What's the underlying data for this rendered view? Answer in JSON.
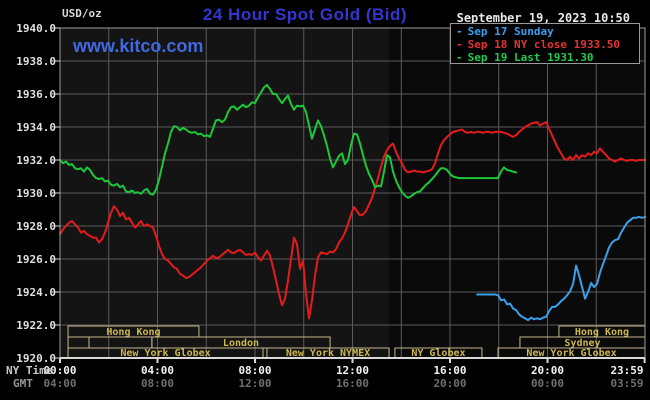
{
  "header": {
    "unit": "USD/oz",
    "title": "24 Hour Spot Gold (Bid)",
    "watermark": "www.kitco.com",
    "datetime": "September 19, 2023 10:50"
  },
  "legend": {
    "items": [
      {
        "label": "Sep 17 Sunday",
        "color": "#3d9ff0"
      },
      {
        "label": "Sep 18 NY close 1933.50",
        "color": "#e53333"
      },
      {
        "label": "Sep 19 Last 1931.30",
        "color": "#21cc4e"
      }
    ]
  },
  "axes": {
    "ny_label": "NY Time",
    "gmt_label": "GMT"
  },
  "chart_data": {
    "type": "line",
    "title": "24 Hour Spot Gold (Bid)",
    "ylabel": "USD/oz",
    "ylim": [
      1920,
      1940
    ],
    "xlim_hours": [
      0,
      24
    ],
    "grid": true,
    "legend_position": "top-right",
    "dark_band_start_hour": 13.5,
    "colors": {
      "plot_bg": "#141414",
      "plot_bg_dark": "#0a0a0a",
      "grid": "#5a5a5a",
      "border": "#9b9b9b",
      "axis": "#d9d9d9",
      "session_border": "#c3b78b",
      "session_text": "#ccb84f"
    },
    "y_ticks": [
      {
        "label": "1940.0",
        "value": 1940
      },
      {
        "label": "1938.0",
        "value": 1938
      },
      {
        "label": "1936.0",
        "value": 1936
      },
      {
        "label": "1934.0",
        "value": 1934
      },
      {
        "label": "1932.0",
        "value": 1932
      },
      {
        "label": "1930.0",
        "value": 1930
      },
      {
        "label": "1928.0",
        "value": 1928
      },
      {
        "label": "1926.0",
        "value": 1926
      },
      {
        "label": "1924.0",
        "value": 1924
      },
      {
        "label": "1922.0",
        "value": 1922
      },
      {
        "label": "1920.0",
        "value": 1920
      }
    ],
    "x_ticks": [
      {
        "ny": "00:00",
        "gmt": "04:00",
        "hour": 0
      },
      {
        "ny": "04:00",
        "gmt": "08:00",
        "hour": 4
      },
      {
        "ny": "08:00",
        "gmt": "12:00",
        "hour": 8
      },
      {
        "ny": "12:00",
        "gmt": "16:00",
        "hour": 12
      },
      {
        "ny": "16:00",
        "gmt": "20:00",
        "hour": 16
      },
      {
        "ny": "20:00",
        "gmt": "00:00",
        "hour": 20
      },
      {
        "ny": "23:59",
        "gmt": "03:59",
        "hour": 23.983
      }
    ],
    "sessions": [
      {
        "row": 1,
        "label": "Hong Kong",
        "start_hour": 0.33,
        "end_hour": 5.7
      },
      {
        "row": 1,
        "label": "Hong Kong",
        "start_hour": 20.47,
        "end_hour": 24
      },
      {
        "row": 2,
        "label": "",
        "start_hour": 0.33,
        "end_hour": 1.19
      },
      {
        "row": 2,
        "label": "",
        "start_hour": 1.19,
        "end_hour": 3.77
      },
      {
        "row": 2,
        "label": "London",
        "start_hour": 3.77,
        "end_hour": 11.08
      },
      {
        "row": 2,
        "label": "Sydney",
        "start_hour": 18.87,
        "end_hour": 24
      },
      {
        "row": 3,
        "label": "New York Globex",
        "start_hour": 0.33,
        "end_hour": 8.33
      },
      {
        "row": 3,
        "label": "New York NYMEX",
        "start_hour": 8.49,
        "end_hour": 13.5
      },
      {
        "row": 3,
        "label": "NY Globex",
        "start_hour": 13.74,
        "end_hour": 17.31
      },
      {
        "row": 3,
        "label": "New York Globex",
        "start_hour": 17.97,
        "end_hour": 24
      }
    ],
    "series": [
      {
        "id": "sep17-sunday",
        "name": "Sep 17 Sunday",
        "color": "#3aa0e8",
        "start_hour": 17.11,
        "step_hour": 0.12308,
        "values": [
          1923.85,
          1923.85,
          1923.85,
          1923.85,
          1923.85,
          1923.85,
          1923.85,
          1923.8,
          1923.5,
          1923.55,
          1923.25,
          1923.3,
          1923.0,
          1922.9,
          1922.65,
          1922.5,
          1922.4,
          1922.3,
          1922.45,
          1922.35,
          1922.4,
          1922.35,
          1922.45,
          1922.5,
          1922.85,
          1923.1,
          1923.1,
          1923.25,
          1923.45,
          1923.6,
          1923.8,
          1924.05,
          1924.5,
          1925.6,
          1925.0,
          1924.3,
          1923.6,
          1924.0,
          1924.55,
          1924.3,
          1924.5,
          1925.2,
          1925.7,
          1926.2,
          1926.7,
          1927.0,
          1927.15,
          1927.2,
          1927.6,
          1927.9,
          1928.2,
          1928.35,
          1928.5,
          1928.5,
          1928.55,
          1928.5,
          1928.55
        ]
      },
      {
        "id": "sep18",
        "name": "Sep 18 NY close 1933.50",
        "color": "#e51b1b",
        "start_hour": 0,
        "step_hour": 0.12308,
        "values": [
          1927.5,
          1927.8,
          1928.0,
          1928.2,
          1928.3,
          1928.1,
          1927.9,
          1927.6,
          1927.7,
          1927.5,
          1927.4,
          1927.3,
          1927.3,
          1927.0,
          1927.2,
          1927.6,
          1928.2,
          1928.8,
          1929.2,
          1929.0,
          1928.6,
          1928.8,
          1928.4,
          1928.5,
          1928.2,
          1927.9,
          1928.1,
          1928.3,
          1928.0,
          1928.1,
          1928.0,
          1927.9,
          1927.4,
          1926.8,
          1926.3,
          1926.0,
          1925.9,
          1925.7,
          1925.5,
          1925.4,
          1925.1,
          1925.0,
          1924.85,
          1924.9,
          1925.05,
          1925.2,
          1925.35,
          1925.5,
          1925.7,
          1925.9,
          1926.05,
          1926.2,
          1926.05,
          1926.1,
          1926.25,
          1926.4,
          1926.55,
          1926.4,
          1926.35,
          1926.5,
          1926.55,
          1926.4,
          1926.25,
          1926.3,
          1926.25,
          1926.4,
          1926.1,
          1925.9,
          1926.2,
          1926.5,
          1926.2,
          1925.5,
          1924.7,
          1923.9,
          1923.2,
          1923.6,
          1924.7,
          1926.0,
          1927.3,
          1926.9,
          1925.4,
          1925.9,
          1923.9,
          1922.4,
          1923.5,
          1925.0,
          1926.1,
          1926.4,
          1926.35,
          1926.3,
          1926.45,
          1926.4,
          1926.6,
          1927.0,
          1927.25,
          1927.6,
          1928.1,
          1928.7,
          1929.15,
          1928.9,
          1928.65,
          1928.7,
          1928.9,
          1929.3,
          1929.7,
          1930.3,
          1930.9,
          1931.6,
          1932.2,
          1932.6,
          1932.85,
          1933.0,
          1932.5,
          1932.1,
          1931.8,
          1931.4,
          1931.25,
          1931.3,
          1931.35,
          1931.3,
          1931.3,
          1931.25,
          1931.3,
          1931.35,
          1931.45,
          1931.8,
          1932.4,
          1932.9,
          1933.2,
          1933.4,
          1933.55,
          1933.7,
          1933.75,
          1933.8,
          1933.85,
          1933.7,
          1933.65,
          1933.7,
          1933.65,
          1933.7,
          1933.7,
          1933.65,
          1933.7,
          1933.7,
          1933.65,
          1933.7,
          1933.7,
          1933.7,
          1933.65,
          1933.6,
          1933.5,
          1933.4,
          1933.5,
          1933.7,
          1933.85,
          1934.0,
          1934.1,
          1934.2,
          1934.25,
          1934.3,
          1934.1,
          1934.2,
          1934.3,
          1933.9,
          1933.5,
          1933.1,
          1932.7,
          1932.4,
          1932.1,
          1932.0,
          1932.2,
          1932.0,
          1932.3,
          1932.1,
          1932.3,
          1932.2,
          1932.4,
          1932.3,
          1932.5,
          1932.4,
          1932.7,
          1932.5,
          1932.3,
          1932.1,
          1932.0,
          1931.9,
          1932.0,
          1932.1,
          1932.0,
          1931.95,
          1932.0,
          1932.0,
          1931.95,
          1932.0,
          1932.0,
          1932.0
        ]
      },
      {
        "id": "sep19",
        "name": "Sep 19 Last 1931.30",
        "color": "#1dc73a",
        "start_hour": 0,
        "step_hour": 0.12308,
        "values": [
          1932.0,
          1931.8,
          1931.9,
          1931.7,
          1931.75,
          1931.5,
          1931.45,
          1931.5,
          1931.3,
          1931.55,
          1931.4,
          1931.1,
          1930.9,
          1930.85,
          1930.9,
          1930.7,
          1930.75,
          1930.5,
          1930.45,
          1930.55,
          1930.35,
          1930.45,
          1930.1,
          1930.05,
          1930.15,
          1930.0,
          1930.05,
          1929.95,
          1930.15,
          1930.25,
          1929.95,
          1929.9,
          1930.2,
          1930.8,
          1931.6,
          1932.4,
          1933.0,
          1933.7,
          1934.05,
          1934.0,
          1933.8,
          1933.95,
          1933.85,
          1933.7,
          1933.65,
          1933.7,
          1933.55,
          1933.6,
          1933.45,
          1933.5,
          1933.4,
          1933.9,
          1934.4,
          1934.45,
          1934.3,
          1934.45,
          1934.9,
          1935.2,
          1935.25,
          1935.05,
          1935.2,
          1935.35,
          1935.2,
          1935.3,
          1935.5,
          1935.45,
          1935.8,
          1936.1,
          1936.4,
          1936.55,
          1936.3,
          1936.0,
          1936.0,
          1935.7,
          1935.45,
          1935.7,
          1935.9,
          1935.4,
          1935.05,
          1935.3,
          1935.25,
          1935.3,
          1934.9,
          1934.1,
          1933.3,
          1933.85,
          1934.4,
          1934.05,
          1933.5,
          1932.85,
          1932.1,
          1931.55,
          1931.9,
          1932.25,
          1932.4,
          1931.75,
          1932.0,
          1932.9,
          1933.6,
          1933.55,
          1933.0,
          1932.3,
          1931.65,
          1931.15,
          1930.8,
          1930.35,
          1930.45,
          1930.4,
          1931.3,
          1932.3,
          1932.15,
          1931.3,
          1930.75,
          1930.35,
          1930.05,
          1929.85,
          1929.7,
          1929.8,
          1929.95,
          1930.05,
          1930.1,
          1930.3,
          1930.5,
          1930.65,
          1930.85,
          1931.05,
          1931.3,
          1931.5,
          1931.5,
          1931.4,
          1931.15,
          1931.0,
          1930.95,
          1930.9,
          1930.9,
          1930.9,
          1930.9,
          1930.9,
          1930.9,
          1930.9,
          1930.9,
          1930.9,
          1930.9,
          1930.9,
          1930.9,
          1930.9,
          1930.9,
          1931.3,
          1931.55,
          1931.4,
          1931.35,
          1931.3,
          1931.25
        ]
      }
    ]
  }
}
